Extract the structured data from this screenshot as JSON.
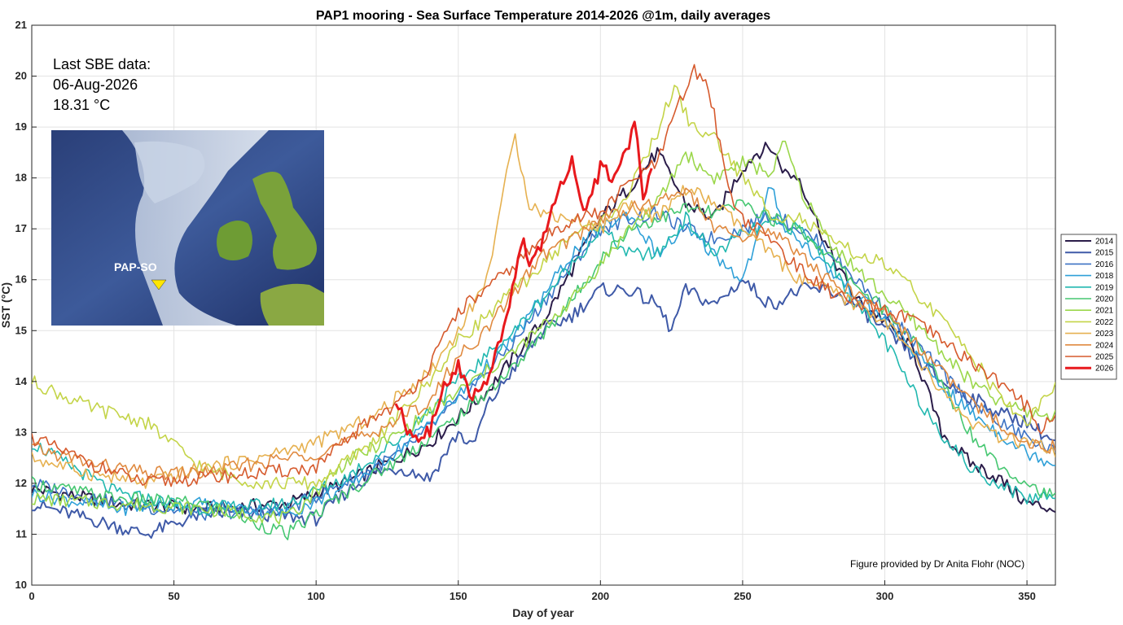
{
  "chart_data": {
    "type": "line",
    "title": "PAP1 mooring - Sea Surface Temperature 2014-2026 @1m, daily averages",
    "xlabel": "Day of year",
    "ylabel": "SST (°C)",
    "xlim": [
      0,
      360
    ],
    "ylim": [
      10,
      21
    ],
    "xticks": [
      0,
      50,
      100,
      150,
      200,
      250,
      300,
      350
    ],
    "yticks": [
      10,
      11,
      12,
      13,
      14,
      15,
      16,
      17,
      18,
      19,
      20,
      21
    ],
    "grid": true,
    "legend_position": "right",
    "series": [
      {
        "name": "2014",
        "color": "#2b1d4a",
        "width": 2,
        "x": [
          0,
          30,
          60,
          90,
          110,
          140,
          160,
          180,
          190,
          200,
          210,
          220,
          230,
          240,
          250,
          255,
          260,
          265,
          270,
          275,
          280,
          285,
          290,
          300,
          310,
          320,
          330,
          340,
          350,
          360
        ],
        "y": [
          11.9,
          11.6,
          11.5,
          11.6,
          12.0,
          12.8,
          13.8,
          15.2,
          16.2,
          17.2,
          17.8,
          18.5,
          17.5,
          17.2,
          18.2,
          18.5,
          18.6,
          18.1,
          18.0,
          17.3,
          16.6,
          16.1,
          15.6,
          15.2,
          14.6,
          13.0,
          12.4,
          12.1,
          11.6,
          11.5
        ]
      },
      {
        "name": "2015",
        "color": "#3f5aa8",
        "width": 2,
        "x": [
          0,
          20,
          40,
          60,
          80,
          100,
          110,
          120,
          130,
          140,
          150,
          155,
          160,
          170,
          180,
          190,
          200,
          210,
          220,
          225,
          230,
          240,
          250,
          260,
          270,
          280,
          290,
          300,
          310,
          320,
          330,
          340,
          350,
          360
        ],
        "y": [
          11.6,
          11.3,
          11.0,
          11.4,
          11.4,
          11.3,
          11.8,
          12.2,
          12.3,
          12.1,
          13.0,
          12.7,
          13.5,
          14.3,
          15.0,
          15.3,
          15.8,
          15.8,
          15.5,
          15.0,
          15.8,
          15.5,
          16.0,
          15.5,
          15.8,
          15.8,
          15.5,
          15.0,
          14.5,
          14.0,
          13.7,
          13.4,
          13.2,
          12.8
        ]
      },
      {
        "name": "2016",
        "color": "#3b72c4",
        "width": 1.6,
        "x": [
          0,
          30,
          60,
          90,
          110,
          130,
          150,
          170,
          190,
          200,
          210,
          220,
          230,
          240,
          250,
          260,
          270,
          280,
          290,
          300,
          310,
          320,
          330,
          340,
          350,
          360
        ],
        "y": [
          12.0,
          11.6,
          11.4,
          11.5,
          12.0,
          12.6,
          13.6,
          14.8,
          16.3,
          17.0,
          17.2,
          17.3,
          17.0,
          16.8,
          17.0,
          17.3,
          17.0,
          16.6,
          16.0,
          15.4,
          14.8,
          14.2,
          13.6,
          13.2,
          12.9,
          12.6
        ]
      },
      {
        "name": "2018",
        "color": "#2fa0d8",
        "width": 1.6,
        "x": [
          0,
          30,
          60,
          90,
          110,
          130,
          150,
          170,
          180,
          190,
          200,
          210,
          220,
          230,
          240,
          250,
          255,
          260,
          265,
          270,
          280,
          290,
          300,
          310,
          320,
          330,
          340,
          350,
          360
        ],
        "y": [
          11.8,
          11.5,
          11.6,
          11.4,
          11.9,
          12.7,
          13.7,
          14.9,
          15.7,
          16.5,
          17.0,
          17.3,
          16.5,
          17.0,
          16.5,
          16.0,
          16.8,
          17.9,
          17.0,
          16.8,
          16.2,
          15.7,
          15.2,
          14.6,
          13.9,
          13.4,
          13.0,
          12.6,
          12.4
        ]
      },
      {
        "name": "2019",
        "color": "#22b8b0",
        "width": 1.6,
        "x": [
          0,
          30,
          60,
          90,
          110,
          130,
          150,
          170,
          190,
          200,
          210,
          220,
          230,
          240,
          250,
          260,
          270,
          280,
          290,
          300,
          310,
          320,
          330,
          340,
          350,
          360
        ],
        "y": [
          12.8,
          11.8,
          11.5,
          11.6,
          12.1,
          12.9,
          14.0,
          15.0,
          16.3,
          17.0,
          16.5,
          16.5,
          17.2,
          16.5,
          16.9,
          17.1,
          17.0,
          16.4,
          15.5,
          14.8,
          13.8,
          13.0,
          12.3,
          12.0,
          11.7,
          11.8
        ]
      },
      {
        "name": "2020",
        "color": "#46c771",
        "width": 1.6,
        "x": [
          0,
          30,
          60,
          90,
          110,
          130,
          150,
          170,
          190,
          200,
          210,
          220,
          230,
          240,
          250,
          260,
          270,
          280,
          290,
          300,
          310,
          320,
          330,
          340,
          350,
          360
        ],
        "y": [
          12.0,
          11.7,
          11.6,
          11.0,
          11.8,
          12.5,
          13.3,
          14.3,
          15.6,
          16.4,
          17.0,
          17.2,
          17.4,
          17.3,
          17.5,
          17.2,
          17.0,
          16.5,
          15.9,
          15.4,
          14.8,
          14.0,
          13.0,
          12.4,
          12.0,
          11.7
        ]
      },
      {
        "name": "2021",
        "color": "#9bd74b",
        "width": 1.6,
        "x": [
          0,
          30,
          60,
          90,
          110,
          130,
          150,
          170,
          190,
          200,
          210,
          220,
          230,
          235,
          240,
          250,
          260,
          265,
          270,
          280,
          290,
          300,
          310,
          320,
          330,
          340,
          350,
          360
        ],
        "y": [
          11.7,
          11.6,
          11.5,
          11.3,
          12.4,
          13.0,
          13.8,
          14.6,
          15.6,
          16.3,
          17.0,
          17.5,
          18.5,
          18.2,
          18.0,
          18.3,
          18.1,
          18.7,
          17.8,
          16.8,
          16.2,
          15.7,
          15.2,
          14.6,
          14.0,
          13.6,
          13.4,
          13.3
        ]
      },
      {
        "name": "2022",
        "color": "#c4d448",
        "width": 1.6,
        "x": [
          0,
          20,
          40,
          60,
          80,
          100,
          120,
          140,
          150,
          160,
          170,
          180,
          190,
          200,
          210,
          220,
          226,
          232,
          240,
          250,
          260,
          270,
          280,
          290,
          300,
          310,
          320,
          330,
          340,
          350,
          355,
          360
        ],
        "y": [
          14.0,
          13.5,
          13.2,
          12.3,
          12.0,
          12.0,
          12.8,
          14.0,
          14.8,
          15.3,
          15.8,
          16.3,
          16.9,
          17.1,
          17.7,
          18.9,
          19.8,
          19.0,
          18.8,
          18.0,
          17.3,
          17.2,
          16.8,
          16.5,
          16.3,
          15.8,
          15.2,
          14.6,
          13.7,
          13.2,
          13.6,
          13.9
        ]
      },
      {
        "name": "2023",
        "color": "#e6b150",
        "width": 1.6,
        "x": [
          0,
          20,
          40,
          60,
          80,
          100,
          120,
          140,
          150,
          160,
          165,
          170,
          175,
          180,
          190,
          200,
          210,
          220,
          230,
          240,
          250,
          260,
          270,
          280,
          290,
          300,
          310,
          320,
          330,
          340,
          350,
          360
        ],
        "y": [
          12.5,
          12.2,
          12.0,
          12.3,
          12.5,
          12.8,
          13.3,
          14.2,
          15.0,
          16.0,
          17.5,
          18.8,
          17.5,
          17.3,
          17.2,
          17.0,
          17.5,
          17.2,
          17.8,
          17.5,
          17.0,
          16.5,
          16.0,
          15.8,
          15.5,
          15.2,
          14.5,
          13.8,
          13.2,
          12.9,
          12.8,
          12.6
        ]
      },
      {
        "name": "2024",
        "color": "#e08a40",
        "width": 1.6,
        "x": [
          0,
          20,
          40,
          60,
          80,
          100,
          120,
          140,
          150,
          160,
          170,
          180,
          190,
          200,
          210,
          220,
          230,
          240,
          250,
          260,
          270,
          280,
          290,
          300,
          310,
          320,
          330,
          340,
          350,
          360
        ],
        "y": [
          12.7,
          12.4,
          12.2,
          12.2,
          12.4,
          12.6,
          13.0,
          13.6,
          14.5,
          15.0,
          15.8,
          16.5,
          16.8,
          17.2,
          17.4,
          17.5,
          17.8,
          17.0,
          16.8,
          17.0,
          16.5,
          16.0,
          15.7,
          15.4,
          14.8,
          14.2,
          13.6,
          13.2,
          12.8,
          12.7
        ]
      },
      {
        "name": "2025",
        "color": "#d65a2d",
        "width": 1.6,
        "x": [
          0,
          20,
          40,
          60,
          80,
          100,
          120,
          130,
          140,
          150,
          160,
          170,
          180,
          190,
          200,
          210,
          220,
          228,
          233,
          238,
          245,
          250,
          260,
          270,
          280,
          290,
          300,
          310,
          320,
          330,
          340,
          350,
          355,
          360
        ],
        "y": [
          12.9,
          12.4,
          12.0,
          12.1,
          12.2,
          12.3,
          13.3,
          13.6,
          14.3,
          15.4,
          15.8,
          16.3,
          16.8,
          17.2,
          17.3,
          17.9,
          18.3,
          19.5,
          20.1,
          19.8,
          17.8,
          17.2,
          16.8,
          16.2,
          15.8,
          15.5,
          15.4,
          15.2,
          14.8,
          14.4,
          14.0,
          13.5,
          13.1,
          13.3
        ]
      },
      {
        "name": "2026",
        "color": "#e8191d",
        "width": 3,
        "x": [
          128,
          132,
          135,
          140,
          145,
          150,
          155,
          160,
          165,
          170,
          173,
          175,
          180,
          185,
          190,
          195,
          200,
          205,
          210,
          212,
          215,
          218
        ],
        "y": [
          13.6,
          13.1,
          12.9,
          13.0,
          13.9,
          14.3,
          13.7,
          14.0,
          14.9,
          16.0,
          16.9,
          16.3,
          16.8,
          17.8,
          18.3,
          17.3,
          18.2,
          18.0,
          18.7,
          19.2,
          17.6,
          18.3
        ]
      }
    ]
  },
  "info_box": {
    "line1": "Last SBE data:",
    "line2": "06-Aug-2026",
    "line3": "18.31 °C"
  },
  "map": {
    "label": "PAP-SO"
  },
  "credit": "Figure provided by Dr Anita Flohr (NOC)"
}
